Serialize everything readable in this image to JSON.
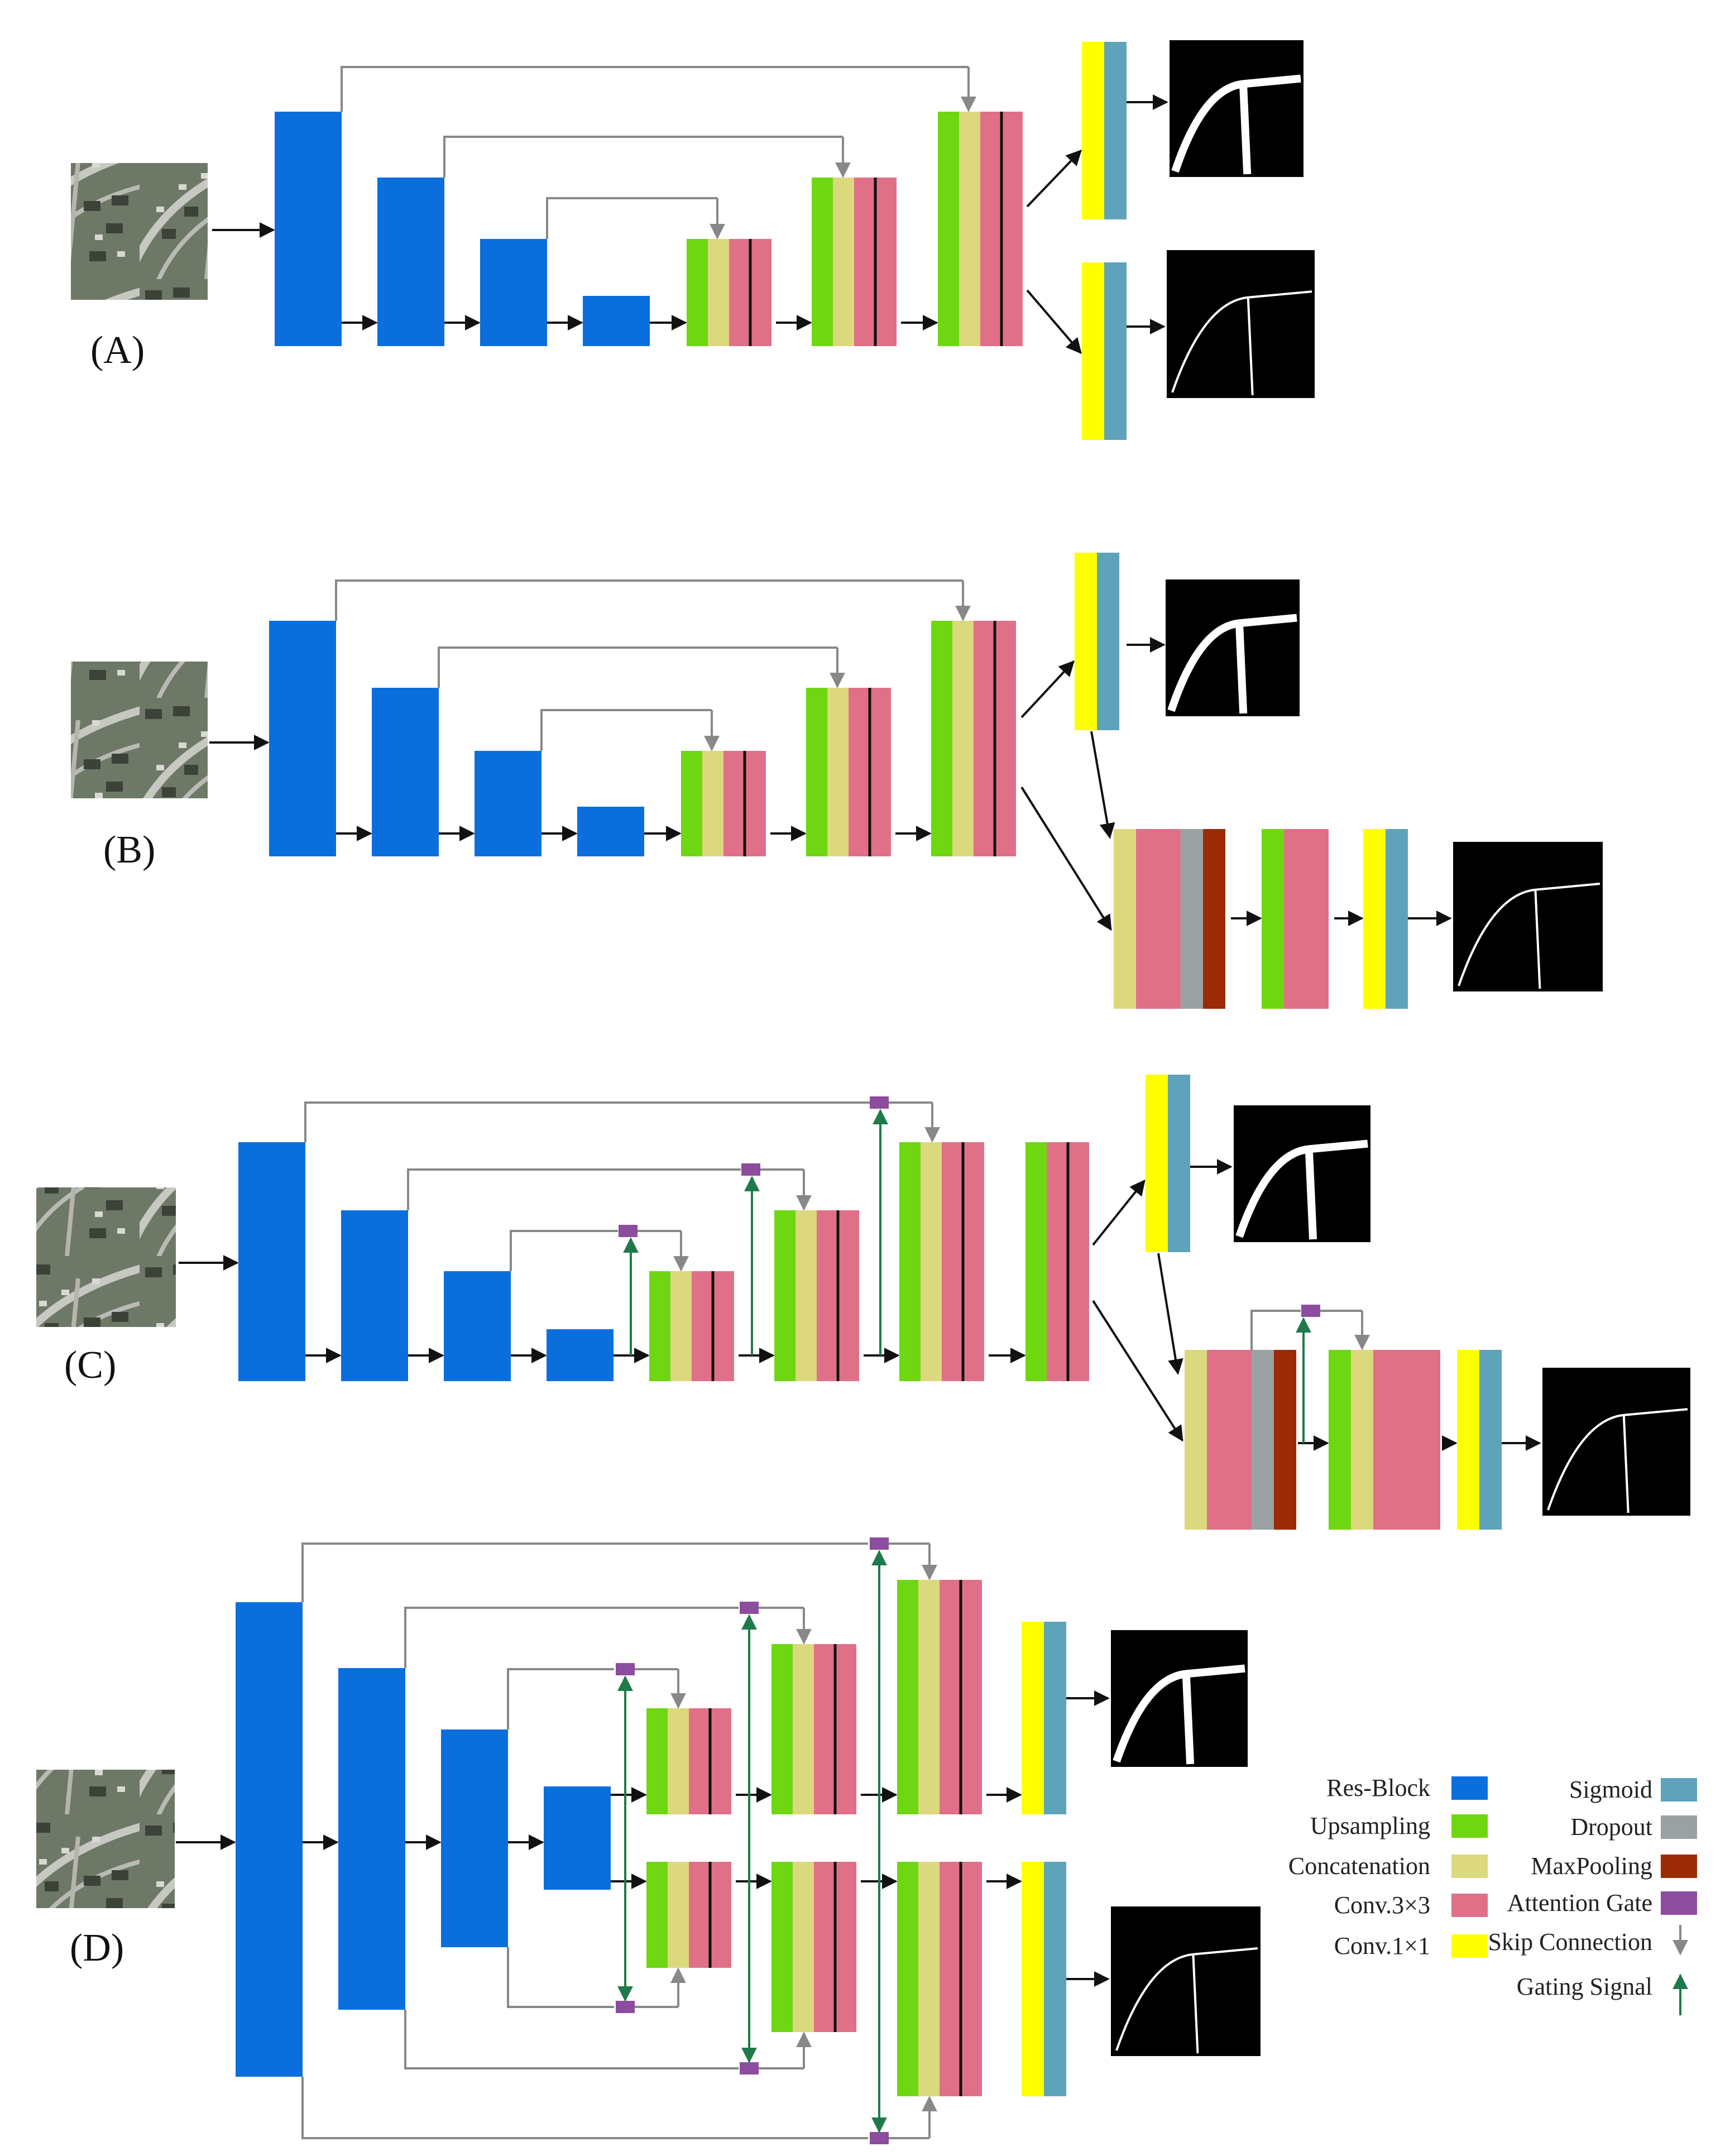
{
  "panels": [
    {
      "id": "A",
      "label": "(A)"
    },
    {
      "id": "B",
      "label": "(B)"
    },
    {
      "id": "C",
      "label": "(C)"
    },
    {
      "id": "D",
      "label": "(D)"
    }
  ],
  "colors": {
    "res_block": "#0a6fdd",
    "upsampling": "#6fd612",
    "concatenation": "#dcd87d",
    "conv3x3": "#e07088",
    "conv1x1": "#ffff00",
    "sigmoid": "#5ea3ba",
    "dropout": "#9aa1a3",
    "maxpooling": "#9a2b06",
    "attention_gate": "#8c4d9e",
    "skip_connection": "#8a8a8a",
    "gating_signal": "#1f7a4a"
  },
  "legend": {
    "items": [
      {
        "key": "res_block",
        "label": "Res-Block"
      },
      {
        "key": "upsampling",
        "label": "Upsampling"
      },
      {
        "key": "concatenation",
        "label": "Concatenation"
      },
      {
        "key": "conv3x3",
        "label": "Conv.3×3"
      },
      {
        "key": "conv1x1",
        "label": "Conv.1×1"
      },
      {
        "key": "sigmoid",
        "label": "Sigmoid"
      },
      {
        "key": "dropout",
        "label": "Dropout"
      },
      {
        "key": "maxpooling",
        "label": "MaxPooling"
      },
      {
        "key": "attention_gate",
        "label": "Attention Gate"
      },
      {
        "key": "skip_connection",
        "label": "Skip Connection"
      },
      {
        "key": "gating_signal",
        "label": "Gating Signal"
      }
    ]
  },
  "icons": [
    "aerial-image-icon",
    "road-mask-thick-icon",
    "road-mask-thin-icon",
    "skip-arrow-icon",
    "gating-arrow-icon"
  ]
}
